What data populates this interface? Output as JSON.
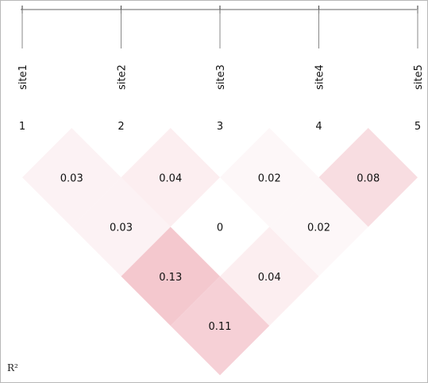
{
  "chart_data": {
    "type": "heatmap",
    "title": "",
    "sites": [
      "site1",
      "site2",
      "site3",
      "site4",
      "site5"
    ],
    "site_numbers": [
      "1",
      "2",
      "3",
      "4",
      "5"
    ],
    "values": [
      {
        "i": 1,
        "j": 2,
        "value": 0.03,
        "label": "0.03"
      },
      {
        "i": 2,
        "j": 3,
        "value": 0.04,
        "label": "0.04"
      },
      {
        "i": 3,
        "j": 4,
        "value": 0.02,
        "label": "0.02"
      },
      {
        "i": 4,
        "j": 5,
        "value": 0.08,
        "label": "0.08"
      },
      {
        "i": 1,
        "j": 3,
        "value": 0.03,
        "label": "0.03"
      },
      {
        "i": 2,
        "j": 4,
        "value": 0,
        "label": "0"
      },
      {
        "i": 3,
        "j": 5,
        "value": 0.02,
        "label": "0.02"
      },
      {
        "i": 1,
        "j": 4,
        "value": 0.13,
        "label": "0.13"
      },
      {
        "i": 2,
        "j": 5,
        "value": 0.04,
        "label": "0.04"
      },
      {
        "i": 1,
        "j": 5,
        "value": 0.11,
        "label": "0.11"
      }
    ],
    "legend_label": "R²",
    "color_low": "#ffffff",
    "color_high": "#eeaab4",
    "color_max_value": 0.2
  }
}
